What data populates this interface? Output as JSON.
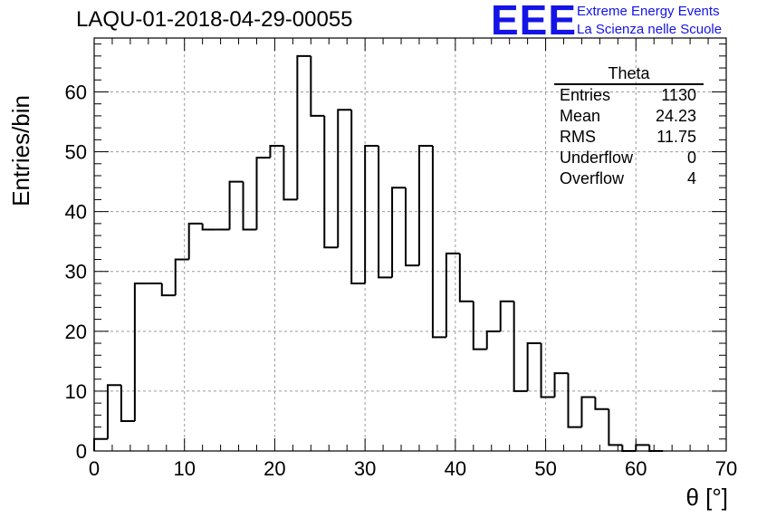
{
  "title": "LAQU-01-2018-04-29-00055",
  "logo": {
    "mark": "EEE",
    "line1": "Extreme Energy Events",
    "line2": "La Scienza nelle Scuole",
    "color": "#1414e6"
  },
  "stats": {
    "name": "Theta",
    "rows": [
      {
        "label": "Entries",
        "value": "1130"
      },
      {
        "label": "Mean",
        "value": "24.23"
      },
      {
        "label": "RMS",
        "value": "11.75"
      },
      {
        "label": "Underflow",
        "value": "0"
      },
      {
        "label": "Overflow",
        "value": "4"
      }
    ]
  },
  "chart_data": {
    "type": "bar",
    "title": "LAQU-01-2018-04-29-00055",
    "xlabel": "θ [°]",
    "ylabel": "Entries/bin",
    "bin_edges_start": 0,
    "bin_width": 1.5,
    "values": [
      2,
      11,
      5,
      28,
      28,
      26,
      32,
      38,
      37,
      37,
      45,
      37,
      49,
      51,
      42,
      66,
      56,
      34,
      57,
      28,
      51,
      29,
      44,
      31,
      51,
      19,
      33,
      25,
      17,
      20,
      25,
      10,
      18,
      9,
      13,
      4,
      9,
      7,
      1,
      0,
      1,
      0
    ],
    "xlim": [
      0,
      70
    ],
    "ylim": [
      0,
      69
    ],
    "xticks": [
      0,
      10,
      20,
      30,
      40,
      50,
      60,
      70
    ],
    "yticks": [
      0,
      10,
      20,
      30,
      40,
      50,
      60
    ],
    "grid": true,
    "style": "histogram-step",
    "line_color": "#000000"
  }
}
